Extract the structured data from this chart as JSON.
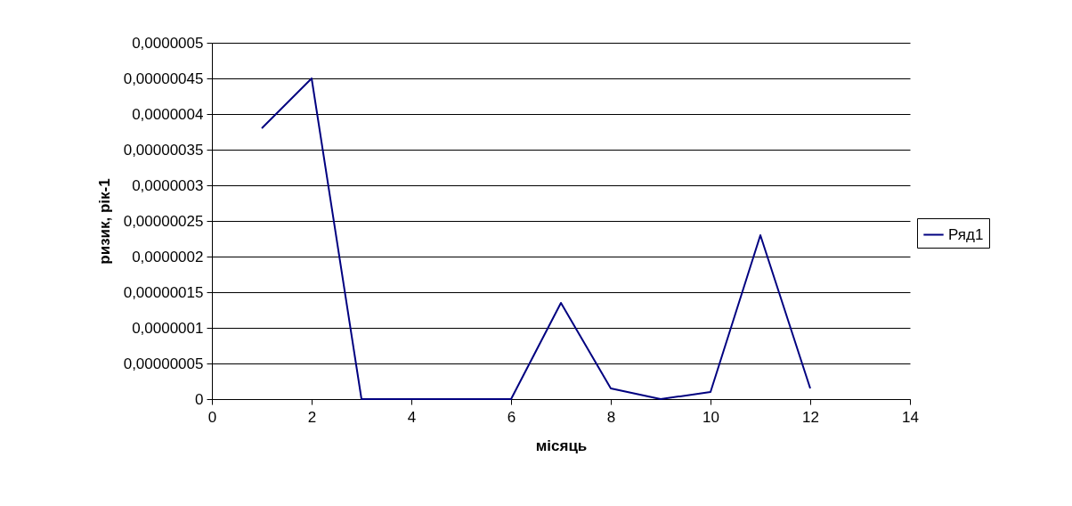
{
  "chart_data": {
    "type": "line",
    "xlabel": "місяць",
    "ylabel": "ризик, рік-1",
    "x": [
      1,
      2,
      3,
      4,
      5,
      6,
      7,
      8,
      9,
      10,
      11,
      12
    ],
    "series": [
      {
        "name": "Ряд1",
        "color": "#000080",
        "values": [
          3.8e-07,
          4.5e-07,
          0,
          0,
          0,
          0,
          1.35e-07,
          1.5e-08,
          0,
          1e-08,
          2.3e-07,
          1.5e-08
        ]
      }
    ],
    "xlim": [
      0,
      14
    ],
    "xticks": [
      0,
      2,
      4,
      6,
      8,
      10,
      12,
      14
    ],
    "ylim": [
      0,
      5e-07
    ],
    "yticks": [
      {
        "value": 0,
        "label": "0"
      },
      {
        "value": 5e-08,
        "label": "0,00000005"
      },
      {
        "value": 1e-07,
        "label": "0,0000001"
      },
      {
        "value": 1.5e-07,
        "label": "0,00000015"
      },
      {
        "value": 2e-07,
        "label": "0,0000002"
      },
      {
        "value": 2.5e-07,
        "label": "0,00000025"
      },
      {
        "value": 3e-07,
        "label": "0,0000003"
      },
      {
        "value": 3.5e-07,
        "label": "0,00000035"
      },
      {
        "value": 4e-07,
        "label": "0,0000004"
      },
      {
        "value": 4.5e-07,
        "label": "0,00000045"
      },
      {
        "value": 5e-07,
        "label": "0,0000005"
      }
    ],
    "grid": "y",
    "legend": "right",
    "line_style": "solid"
  }
}
